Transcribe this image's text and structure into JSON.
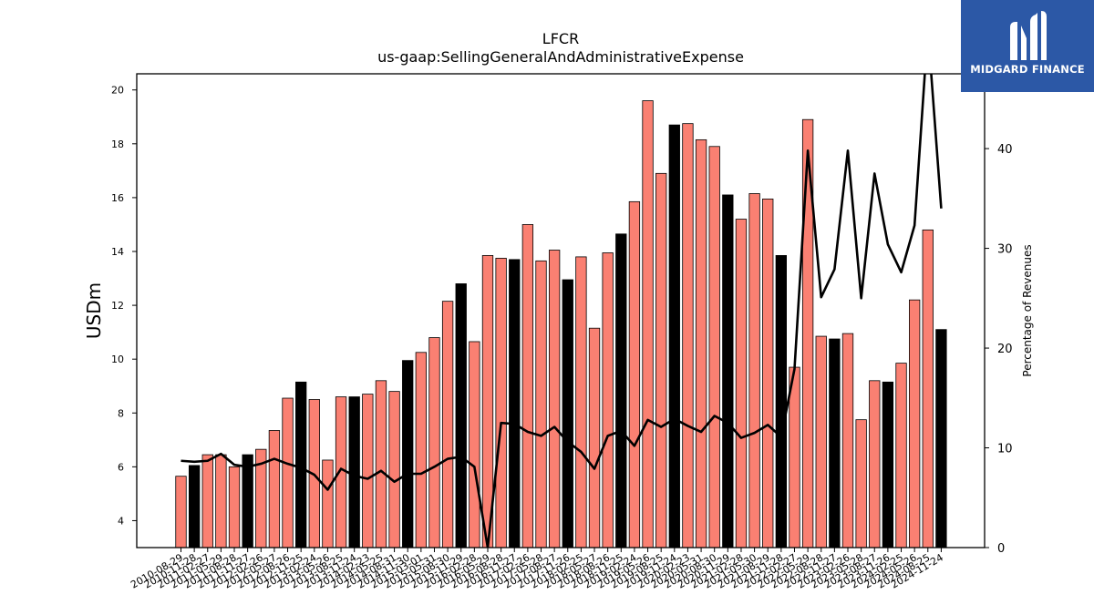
{
  "brand": {
    "name": "MIDGARD FINANCE",
    "bg_color": "#2c58a6"
  },
  "chart_data": {
    "type": "bar",
    "title": "LFCR",
    "subtitle": "us-gaap:SellingGeneralAndAdministrativeExpense",
    "ylabel": "USDm",
    "y2label": "Percentage of Revenues",
    "ylim": [
      3.0,
      20.6
    ],
    "y2lim": [
      0,
      47.5
    ],
    "yticks": [
      4,
      6,
      8,
      10,
      12,
      14,
      16,
      18,
      20
    ],
    "y2ticks": [
      0,
      10,
      20,
      30,
      40
    ],
    "colors": {
      "bar": "#fa8072",
      "bar_highlight": "#000000",
      "line": "#000000"
    },
    "grid": false,
    "categories": [
      "2010-08-29",
      "2010-11-28",
      "2011-02-27",
      "2011-05-29",
      "2011-08-28",
      "2011-11-27",
      "2012-02-26",
      "2012-05-27",
      "2012-08-26",
      "2012-11-25",
      "2013-02-24",
      "2013-05-26",
      "2013-08-25",
      "2013-11-24",
      "2014-02-23",
      "2014-05-25",
      "2014-08-31",
      "2014-11-30",
      "2015-03-01",
      "2015-05-31",
      "2015-08-30",
      "2015-11-29",
      "2016-02-28",
      "2016-05-29",
      "2016-08-28",
      "2016-11-27",
      "2017-02-26",
      "2017-05-28",
      "2017-08-27",
      "2017-11-26",
      "2018-02-25",
      "2018-05-27",
      "2018-08-26",
      "2018-11-25",
      "2019-02-24",
      "2019-05-26",
      "2019-08-25",
      "2019-11-24",
      "2020-02-23",
      "2020-05-31",
      "2020-08-30",
      "2020-11-29",
      "2021-02-28",
      "2021-05-30",
      "2021-08-29",
      "2021-11-28",
      "2022-02-27",
      "2022-05-29",
      "2022-08-28",
      "2022-11-27",
      "2023-02-26",
      "2023-05-28",
      "2023-08-27",
      "2023-11-26",
      "2024-02-25",
      "2024-05-26",
      "2024-08-25",
      "2024-11-24"
    ],
    "values": [
      5.65,
      6.05,
      6.45,
      6.45,
      6.0,
      6.45,
      6.65,
      7.35,
      8.55,
      9.15,
      8.5,
      6.25,
      8.6,
      8.6,
      8.7,
      9.2,
      8.8,
      9.95,
      10.25,
      10.8,
      12.15,
      12.8,
      10.65,
      13.85,
      13.75,
      13.7,
      15.0,
      13.65,
      14.05,
      12.95,
      13.8,
      11.15,
      13.95,
      14.65,
      15.85,
      19.6,
      16.9,
      18.7,
      18.75,
      18.15,
      17.9,
      16.1,
      15.2,
      16.15,
      15.95,
      13.85,
      9.7,
      18.9,
      10.85,
      10.75,
      10.95,
      7.75,
      9.2,
      9.15,
      9.85,
      12.2,
      14.8,
      11.1
    ],
    "highlight": [
      false,
      true,
      false,
      false,
      false,
      true,
      false,
      false,
      false,
      true,
      false,
      false,
      false,
      true,
      false,
      false,
      false,
      true,
      false,
      false,
      false,
      true,
      false,
      false,
      false,
      true,
      false,
      false,
      false,
      true,
      false,
      false,
      false,
      true,
      false,
      false,
      false,
      true,
      false,
      false,
      false,
      true,
      false,
      false,
      false,
      true,
      false,
      false,
      false,
      true,
      false,
      false,
      false,
      true,
      false,
      false,
      false,
      true
    ],
    "series": [
      {
        "type": "bar",
        "values_ref": "values"
      },
      {
        "type": "line",
        "axis": "y2",
        "values": [
          8.7,
          8.6,
          8.7,
          9.4,
          8.3,
          8.1,
          8.4,
          8.9,
          8.4,
          8.0,
          7.3,
          5.8,
          7.9,
          7.2,
          6.9,
          7.7,
          6.6,
          7.4,
          7.4,
          8.1,
          8.9,
          9.1,
          8.1,
          0.0,
          12.5,
          12.4,
          11.6,
          11.2,
          12.1,
          10.6,
          9.6,
          7.9,
          11.2,
          11.7,
          10.2,
          12.8,
          12.1,
          12.9,
          12.2,
          11.6,
          13.2,
          12.5,
          11.0,
          11.5,
          12.3,
          11.1,
          17.9,
          39.8,
          25.1,
          27.9,
          39.8,
          25.0,
          37.5,
          30.4,
          27.6,
          32.3,
          52.0,
          34.0
        ]
      }
    ]
  }
}
